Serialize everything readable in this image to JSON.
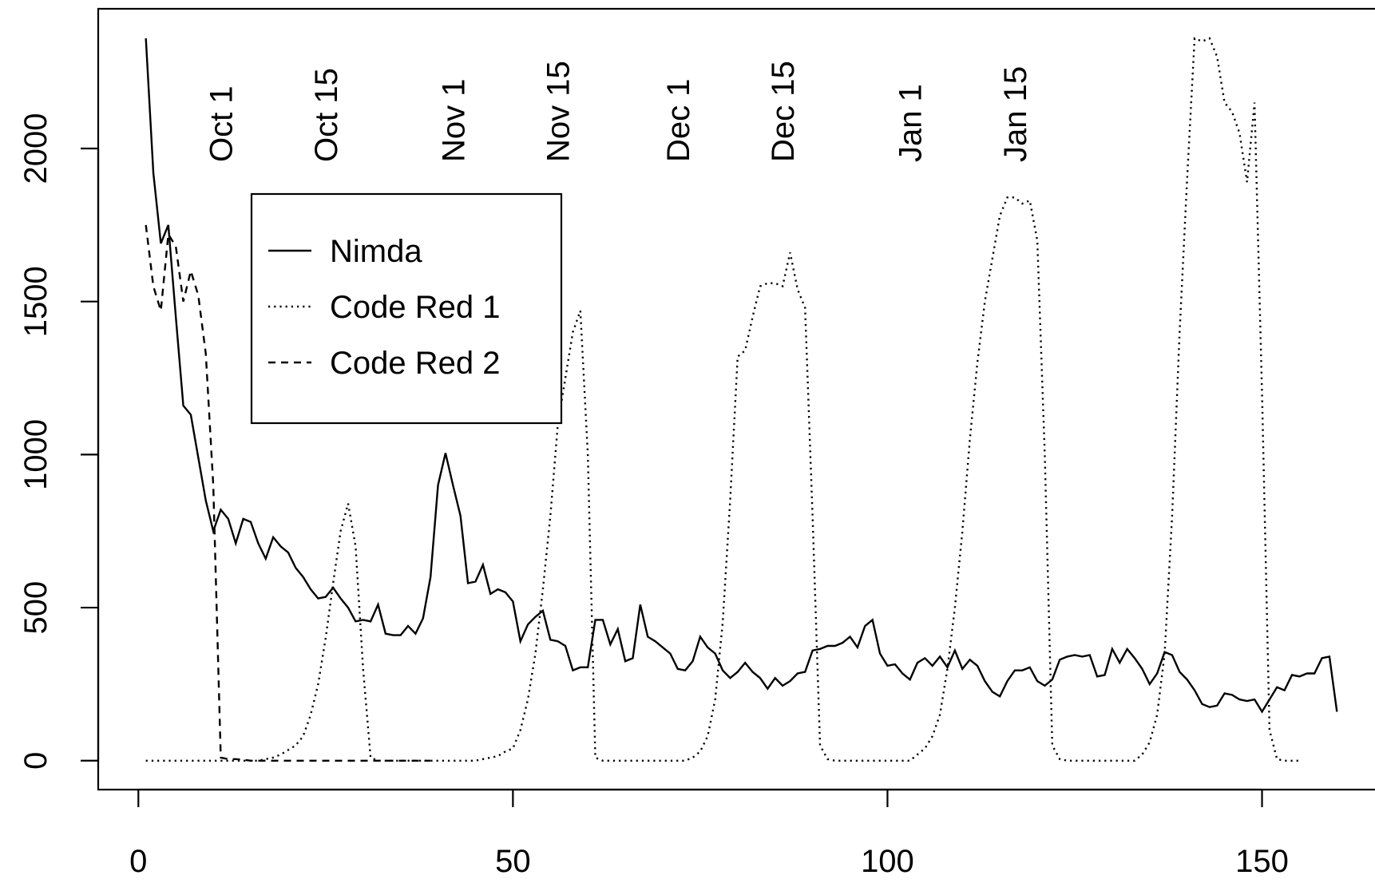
{
  "chart_data": {
    "type": "line",
    "x": [
      1,
      2,
      3,
      4,
      5,
      6,
      7,
      8,
      9,
      10,
      11,
      12,
      13,
      14,
      15,
      16,
      17,
      18,
      19,
      20,
      21,
      22,
      23,
      24,
      25,
      26,
      27,
      28,
      29,
      30,
      31,
      32,
      33,
      34,
      35,
      36,
      37,
      38,
      39,
      40,
      41,
      42,
      43,
      44,
      45,
      46,
      47,
      48,
      49,
      50,
      51,
      52,
      53,
      54,
      55,
      56,
      57,
      58,
      59,
      60,
      61,
      62,
      63,
      64,
      65,
      66,
      67,
      68,
      69,
      70,
      71,
      72,
      73,
      74,
      75,
      76,
      77,
      78,
      79,
      80,
      81,
      82,
      83,
      84,
      85,
      86,
      87,
      88,
      89,
      90,
      91,
      92,
      93,
      94,
      95,
      96,
      97,
      98,
      99,
      100,
      101,
      102,
      103,
      104,
      105,
      106,
      107,
      108,
      109,
      110,
      111,
      112,
      113,
      114,
      115,
      116,
      117,
      118,
      119,
      120,
      121,
      122,
      123,
      124,
      125,
      126,
      127,
      128,
      129,
      130,
      131,
      132,
      133,
      134,
      135,
      136,
      137,
      138,
      139,
      140,
      141,
      142,
      143,
      144,
      145,
      146,
      147,
      148,
      149,
      150,
      151,
      152,
      153,
      154,
      155,
      156,
      157,
      158,
      159,
      160
    ],
    "series": [
      {
        "name": "Nimda",
        "color": "#000000",
        "linestyle": "solid",
        "values": [
          2360,
          1920,
          1690,
          1750,
          1450,
          1160,
          1130,
          990,
          850,
          750,
          820,
          790,
          710,
          790,
          780,
          710,
          660,
          730,
          700,
          680,
          630,
          600,
          560,
          530,
          535,
          565,
          530,
          500,
          455,
          460,
          455,
          510,
          415,
          410,
          410,
          440,
          415,
          465,
          600,
          900,
          1005,
          900,
          800,
          580,
          585,
          640,
          545,
          560,
          550,
          520,
          390,
          445,
          470,
          490,
          395,
          390,
          375,
          295,
          305,
          305,
          460,
          460,
          380,
          430,
          325,
          335,
          510,
          405,
          390,
          370,
          350,
          300,
          295,
          325,
          405,
          370,
          350,
          295,
          270,
          290,
          320,
          290,
          270,
          235,
          270,
          245,
          260,
          285,
          290,
          360,
          365,
          375,
          375,
          385,
          405,
          370,
          440,
          460,
          350,
          310,
          315,
          285,
          265,
          320,
          335,
          310,
          340,
          305,
          360,
          300,
          330,
          310,
          260,
          225,
          210,
          260,
          295,
          295,
          305,
          260,
          245,
          265,
          330,
          340,
          345,
          340,
          345,
          275,
          280,
          365,
          320,
          365,
          335,
          300,
          250,
          285,
          355,
          345,
          290,
          265,
          230,
          185,
          175,
          180,
          220,
          215,
          200,
          195,
          200,
          160,
          200,
          240,
          230,
          280,
          275,
          285,
          285,
          335,
          340,
          160
        ]
      },
      {
        "name": "Code Red 1",
        "color": "#000000",
        "linestyle": "dotted",
        "values": [
          0,
          0,
          0,
          0,
          0,
          0,
          0,
          0,
          0,
          0,
          0,
          0,
          0,
          0,
          0,
          0,
          5,
          10,
          20,
          35,
          50,
          80,
          150,
          250,
          400,
          580,
          750,
          840,
          700,
          300,
          10,
          0,
          0,
          0,
          0,
          0,
          0,
          0,
          0,
          0,
          0,
          0,
          0,
          0,
          0,
          5,
          10,
          15,
          30,
          40,
          100,
          200,
          350,
          560,
          800,
          1100,
          1250,
          1400,
          1470,
          1000,
          10,
          0,
          0,
          0,
          0,
          0,
          0,
          0,
          0,
          0,
          0,
          0,
          0,
          10,
          30,
          80,
          200,
          450,
          850,
          1320,
          1340,
          1450,
          1550,
          1560,
          1560,
          1550,
          1660,
          1540,
          1480,
          800,
          50,
          5,
          0,
          0,
          0,
          0,
          0,
          0,
          0,
          0,
          0,
          0,
          0,
          20,
          40,
          80,
          150,
          300,
          500,
          750,
          1050,
          1300,
          1500,
          1640,
          1780,
          1840,
          1840,
          1820,
          1830,
          1700,
          1000,
          50,
          5,
          0,
          0,
          0,
          0,
          0,
          0,
          0,
          0,
          0,
          0,
          20,
          60,
          150,
          350,
          800,
          1400,
          1900,
          2360,
          2350,
          2360,
          2300,
          2150,
          2120,
          2050,
          1890,
          2150,
          1200,
          100,
          5,
          0,
          0,
          0,
          null,
          null,
          null,
          null,
          null
        ]
      },
      {
        "name": "Code Red 2",
        "color": "#000000",
        "linestyle": "dashed",
        "values": [
          1750,
          1550,
          1470,
          1720,
          1680,
          1500,
          1600,
          1520,
          1330,
          900,
          10,
          5,
          5,
          3,
          0,
          0,
          0,
          0,
          0,
          0,
          0,
          0,
          0,
          0,
          0,
          0,
          0,
          0,
          0,
          0,
          0,
          0,
          0,
          0,
          0,
          0,
          0,
          0,
          0,
          null,
          null,
          null,
          null,
          null,
          null,
          null,
          null,
          null,
          null,
          null,
          null,
          null,
          null,
          null,
          null,
          null,
          null,
          null,
          null,
          null,
          null,
          null,
          null,
          null,
          null,
          null,
          null,
          null,
          null,
          null,
          null,
          null,
          null,
          null,
          null,
          null,
          null,
          null,
          null,
          null,
          null,
          null,
          null,
          null,
          null,
          null,
          null,
          null,
          null,
          null,
          null,
          null,
          null,
          null,
          null,
          null,
          null,
          null,
          null,
          null,
          null,
          null,
          null,
          null,
          null,
          null,
          null,
          null,
          null,
          null,
          null,
          null,
          null,
          null,
          null,
          null,
          null,
          null,
          null,
          null,
          null,
          null,
          null,
          null,
          null,
          null,
          null,
          null,
          null,
          null,
          null,
          null,
          null,
          null,
          null,
          null,
          null,
          null,
          null,
          null,
          null,
          null,
          null,
          null,
          null,
          null,
          null,
          null,
          null,
          null,
          null,
          null,
          null,
          null,
          null,
          null,
          null,
          null,
          null,
          null
        ]
      }
    ],
    "annotations": [
      {
        "text": "Oct 1",
        "x": 11
      },
      {
        "text": "Oct 15",
        "x": 25
      },
      {
        "text": "Nov 1",
        "x": 42
      },
      {
        "text": "Nov 15",
        "x": 56
      },
      {
        "text": "Dec 1",
        "x": 72
      },
      {
        "text": "Dec 15",
        "x": 86
      },
      {
        "text": "Jan 1",
        "x": 103
      },
      {
        "text": "Jan 15",
        "x": 117
      }
    ],
    "xlim": [
      -5.36,
      166.36
    ],
    "ylim": [
      -94.5,
      2456.5
    ],
    "xticks": [
      0,
      50,
      100,
      150
    ],
    "yticks": [
      0,
      500,
      1000,
      1500,
      2000
    ],
    "legend": "upper left"
  }
}
